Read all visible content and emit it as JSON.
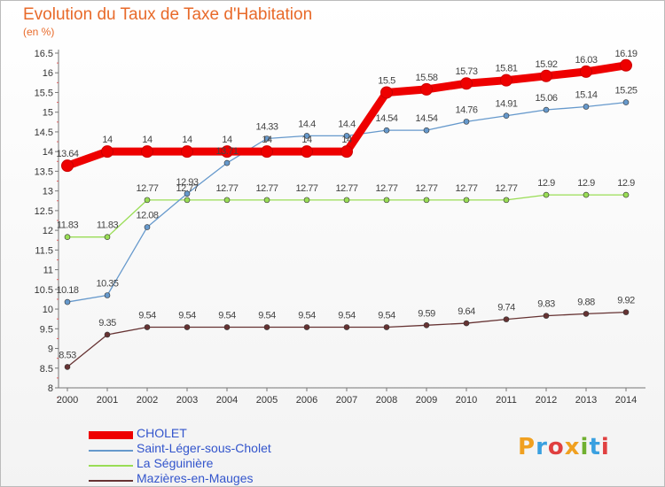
{
  "header": {
    "title": "Evolution du Taux de Taxe d'Habitation",
    "unit": "(en %)"
  },
  "logo": {
    "text": "Proxiti",
    "colors": [
      "#f0a020",
      "#3aa0e0",
      "#e04040",
      "#f0a020",
      "#70b030",
      "#3aa0e0",
      "#e04040"
    ]
  },
  "chart_data": {
    "type": "line",
    "x": [
      "2000",
      "2001",
      "2002",
      "2003",
      "2004",
      "2005",
      "2006",
      "2007",
      "2008",
      "2009",
      "2010",
      "2011",
      "2012",
      "2013",
      "2014"
    ],
    "ylim": [
      8,
      16.5
    ],
    "yticks": [
      "8",
      "8.5",
      "9",
      "9.5",
      "10",
      "10.5",
      "11",
      "11.5",
      "12",
      "12.5",
      "13",
      "13.5",
      "14",
      "14.5",
      "15",
      "15.5",
      "16",
      "16.5"
    ],
    "grid": false,
    "legend_position": "bottom-left",
    "series": [
      {
        "name": "CHOLET",
        "color": "#ee0000",
        "values": [
          13.64,
          14,
          14,
          14,
          14,
          14,
          14,
          14,
          15.5,
          15.58,
          15.73,
          15.81,
          15.92,
          16.03,
          16.19
        ],
        "labels": [
          "13.64",
          "14",
          "14",
          "14",
          "14",
          "14",
          "14",
          "14",
          "15.5",
          "15.58",
          "15.73",
          "15.81",
          "15.92",
          "16.03",
          "16.19"
        ]
      },
      {
        "name": "Saint-Léger-sous-Cholet",
        "color": "#6699cc",
        "values": [
          10.18,
          10.35,
          12.08,
          12.93,
          13.71,
          14.33,
          14.4,
          14.4,
          14.54,
          14.54,
          14.76,
          14.91,
          15.06,
          15.14,
          15.25
        ],
        "labels": [
          "10.18",
          "10.35",
          "12.08",
          "12.93",
          "13.71",
          "14.33",
          "14.4",
          "14.4",
          "14.54",
          "14.54",
          "14.76",
          "14.91",
          "15.06",
          "15.14",
          "15.25"
        ]
      },
      {
        "name": "La Séguinière",
        "color": "#99dd55",
        "values": [
          11.83,
          11.83,
          12.77,
          12.77,
          12.77,
          12.77,
          12.77,
          12.77,
          12.77,
          12.77,
          12.77,
          12.77,
          12.9,
          12.9,
          12.9
        ],
        "labels": [
          "11.83",
          "11.83",
          "12.77",
          "12.77",
          "12.77",
          "12.77",
          "12.77",
          "12.77",
          "12.77",
          "12.77",
          "12.77",
          "12.77",
          "12.9",
          "12.9",
          "12.9"
        ]
      },
      {
        "name": "Mazières-en-Mauges",
        "color": "#663333",
        "values": [
          8.53,
          9.35,
          9.54,
          9.54,
          9.54,
          9.54,
          9.54,
          9.54,
          9.54,
          9.59,
          9.64,
          9.74,
          9.83,
          9.88,
          9.92
        ],
        "labels": [
          "8.53",
          "9.35",
          "9.54",
          "9.54",
          "9.54",
          "9.54",
          "9.54",
          "9.54",
          "9.54",
          "9.59",
          "9.64",
          "9.74",
          "9.83",
          "9.88",
          "9.92"
        ]
      }
    ]
  }
}
